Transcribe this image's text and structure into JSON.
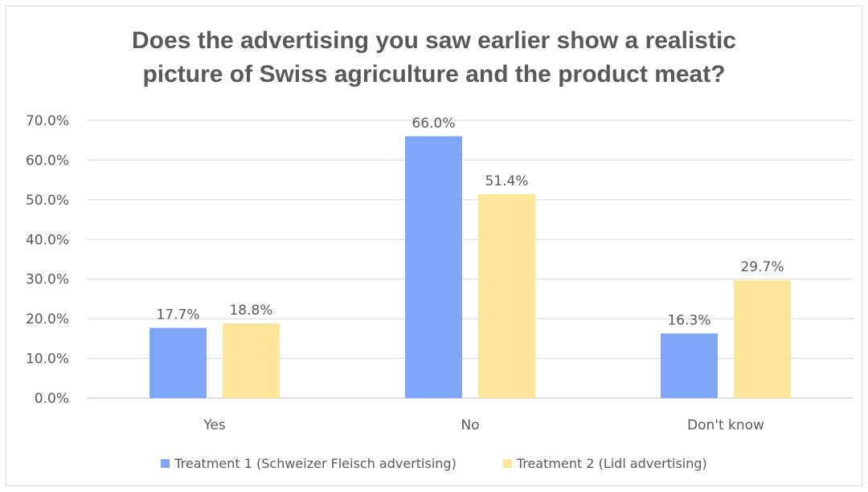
{
  "chart_data": {
    "type": "bar",
    "title_lines": [
      "Does the advertising you saw earlier show a realistic",
      "picture of Swiss agriculture and the product meat?"
    ],
    "categories": [
      "Yes",
      "No",
      "Don't know"
    ],
    "series": [
      {
        "name": "Treatment 1 (Schweizer Fleisch advertising)",
        "color": "#7FA5F7",
        "values": [
          17.7,
          66.0,
          16.3
        ],
        "labels": [
          "17.7%",
          "66.0%",
          "16.3%"
        ]
      },
      {
        "name": "Treatment 2 (Lidl advertising)",
        "color": "#FDE59A",
        "values": [
          18.8,
          51.4,
          29.7
        ],
        "labels": [
          "18.8%",
          "51.4%",
          "29.7%"
        ]
      }
    ],
    "ylim": [
      0,
      70
    ],
    "yticks": [
      "0.0%",
      "10.0%",
      "20.0%",
      "30.0%",
      "40.0%",
      "50.0%",
      "60.0%",
      "70.0%"
    ],
    "grid": true,
    "legend_position": "bottom"
  }
}
